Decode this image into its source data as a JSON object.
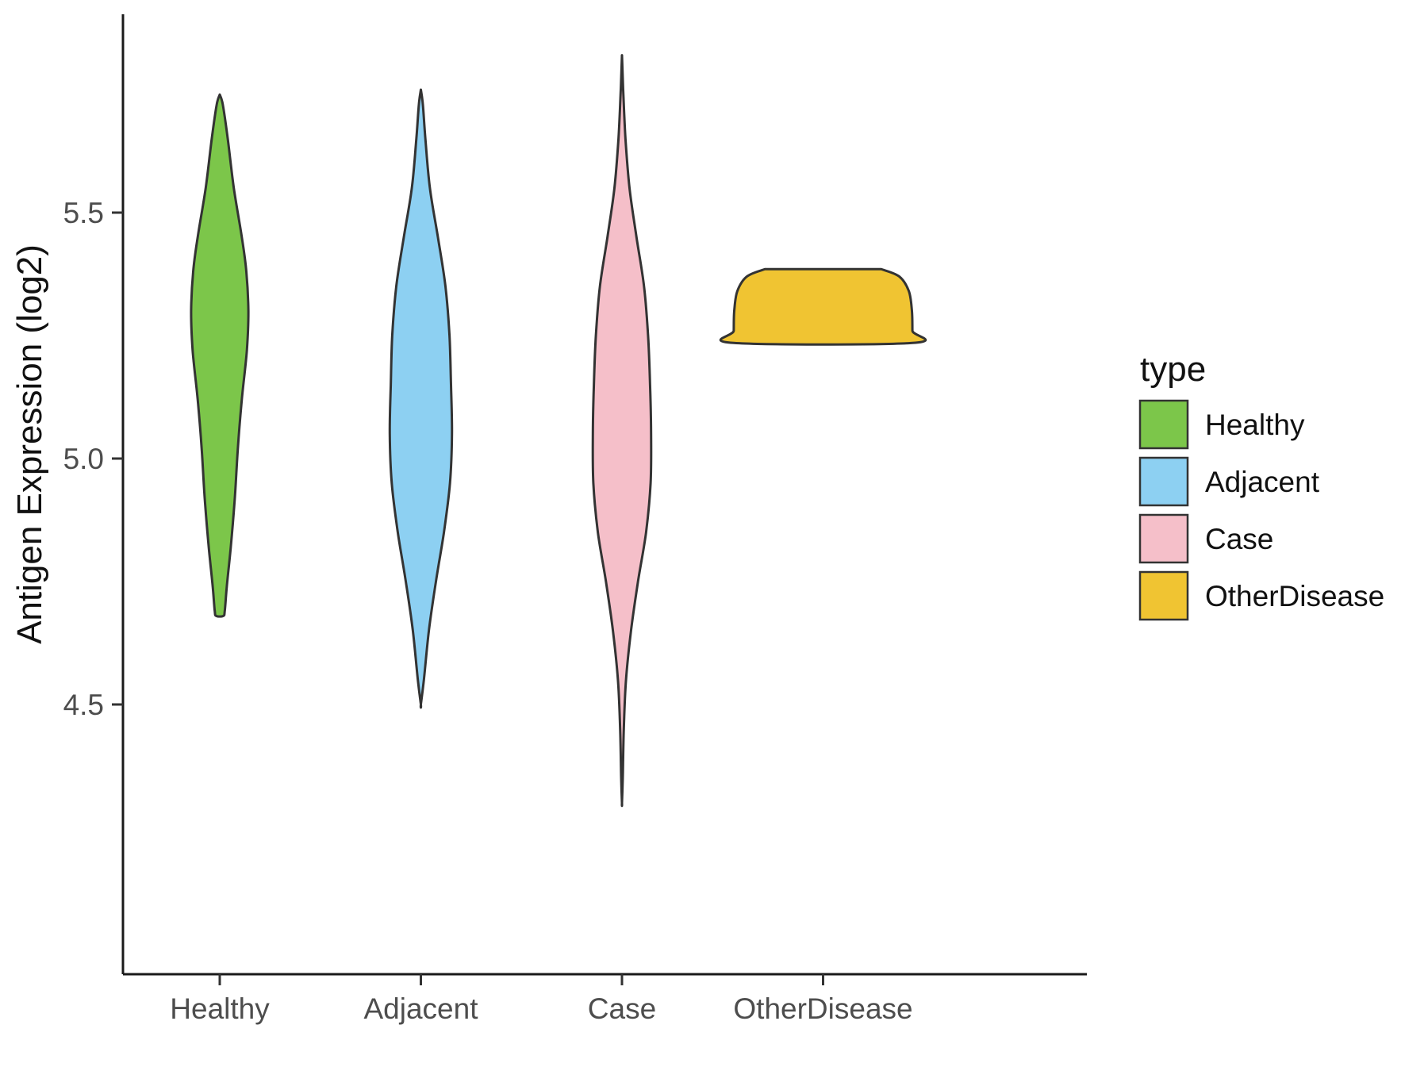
{
  "chart_data": {
    "type": "violin",
    "title": "",
    "xlabel": "",
    "ylabel": "Antigen Expression (log2)",
    "categories": [
      "Healthy",
      "Adjacent",
      "Case",
      "OtherDisease"
    ],
    "y_ticks": [
      {
        "value": 5.5,
        "label": "5.5"
      },
      {
        "value": 5.0,
        "label": "5.0"
      },
      {
        "value": 4.5,
        "label": "4.5"
      }
    ],
    "ylim": [
      3.95,
      5.9
    ],
    "grid": "off",
    "legend_position": "right",
    "legend": {
      "title": "type",
      "entries": [
        {
          "label": "Healthy",
          "color": "#7CC64A"
        },
        {
          "label": "Adjacent",
          "color": "#8DD0F2"
        },
        {
          "label": "Case",
          "color": "#F5BFC9"
        },
        {
          "label": "OtherDisease",
          "color": "#F0C432"
        }
      ]
    },
    "outline_color": "#333333",
    "series": [
      {
        "name": "Healthy",
        "color": "#7CC64A",
        "min": 4.68,
        "max": 5.74,
        "profile": [
          [
            5.74,
            0.0
          ],
          [
            5.72,
            0.03
          ],
          [
            5.65,
            0.08
          ],
          [
            5.55,
            0.14
          ],
          [
            5.45,
            0.22
          ],
          [
            5.38,
            0.265
          ],
          [
            5.3,
            0.285
          ],
          [
            5.22,
            0.27
          ],
          [
            5.12,
            0.22
          ],
          [
            5.02,
            0.18
          ],
          [
            4.92,
            0.15
          ],
          [
            4.82,
            0.11
          ],
          [
            4.74,
            0.07
          ],
          [
            4.69,
            0.05
          ],
          [
            4.68,
            0.035
          ]
        ]
      },
      {
        "name": "Adjacent",
        "color": "#8DD0F2",
        "min": 4.5,
        "max": 5.75,
        "profile": [
          [
            5.75,
            0.0
          ],
          [
            5.72,
            0.02
          ],
          [
            5.65,
            0.045
          ],
          [
            5.55,
            0.09
          ],
          [
            5.45,
            0.17
          ],
          [
            5.35,
            0.245
          ],
          [
            5.25,
            0.285
          ],
          [
            5.15,
            0.3
          ],
          [
            5.05,
            0.31
          ],
          [
            4.95,
            0.29
          ],
          [
            4.85,
            0.23
          ],
          [
            4.75,
            0.15
          ],
          [
            4.65,
            0.08
          ],
          [
            4.55,
            0.03
          ],
          [
            4.5,
            0.0
          ]
        ]
      },
      {
        "name": "Case",
        "color": "#F5BFC9",
        "min": 4.3,
        "max": 5.82,
        "profile": [
          [
            5.82,
            0.0
          ],
          [
            5.75,
            0.012
          ],
          [
            5.65,
            0.035
          ],
          [
            5.55,
            0.075
          ],
          [
            5.45,
            0.145
          ],
          [
            5.35,
            0.22
          ],
          [
            5.25,
            0.26
          ],
          [
            5.15,
            0.28
          ],
          [
            5.05,
            0.29
          ],
          [
            4.95,
            0.285
          ],
          [
            4.85,
            0.24
          ],
          [
            4.75,
            0.16
          ],
          [
            4.65,
            0.09
          ],
          [
            4.55,
            0.04
          ],
          [
            4.45,
            0.018
          ],
          [
            4.35,
            0.008
          ],
          [
            4.3,
            0.0
          ]
        ]
      },
      {
        "name": "OtherDisease",
        "color": "#F0C432",
        "min": 5.235,
        "max": 5.385,
        "profile": [
          [
            5.385,
            0.58
          ],
          [
            5.37,
            0.76
          ],
          [
            5.34,
            0.855
          ],
          [
            5.3,
            0.885
          ],
          [
            5.26,
            0.89
          ],
          [
            5.235,
            0.89
          ]
        ]
      }
    ]
  }
}
